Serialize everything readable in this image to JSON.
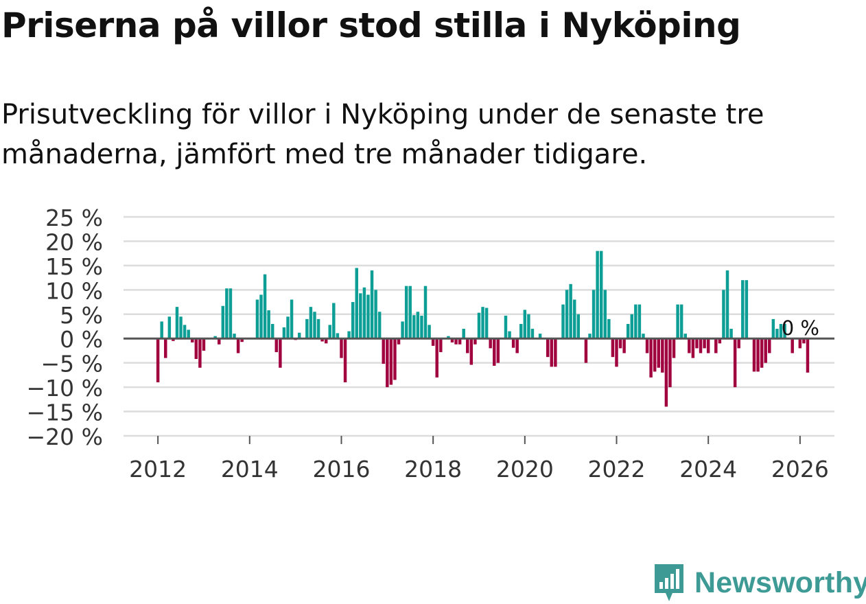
{
  "title": "Priserna på villor stod stilla i Nyköping",
  "subtitle": "Prisutveckling för villor i Nyköping under de senaste tre månaderna, jämfört med tre månader tidigare.",
  "brand": {
    "name": "Newsworthy",
    "color": "#3e9a95",
    "icon": "newsworthy-logo-icon"
  },
  "colors": {
    "positive": "#0d9e96",
    "negative": "#a0003e",
    "grid": "#dcdcdc",
    "zero": "#555555",
    "text": "#333333"
  },
  "chart_data": {
    "type": "bar",
    "title": "Priserna på villor stod stilla i Nyköping",
    "xlabel": "",
    "ylabel": "",
    "x_start": 2012.0,
    "x_step": 0.08333,
    "xlim": [
      2011.25,
      2026.75
    ],
    "ylim": [
      -20,
      25
    ],
    "yticks": [
      25,
      20,
      15,
      10,
      5,
      0,
      -5,
      -10,
      -15,
      -20
    ],
    "ytick_labels": [
      "25 %",
      "20 %",
      "15 %",
      "10 %",
      "5 %",
      "0 %",
      "−5 %",
      "−10 %",
      "−15 %",
      "−20 %"
    ],
    "xticks": [
      2012,
      2014,
      2016,
      2018,
      2020,
      2022,
      2024,
      2026
    ],
    "xtick_labels": [
      "2012",
      "2014",
      "2016",
      "2018",
      "2020",
      "2022",
      "2024",
      "2026"
    ],
    "annotation": "0 %",
    "values": [
      -9,
      3.5,
      -4,
      4.5,
      -0.5,
      6.5,
      4.5,
      2.8,
      1.8,
      -0.8,
      -4.2,
      -6,
      -2.5,
      0,
      0,
      0.5,
      -1.2,
      6.7,
      10.3,
      10.3,
      1,
      -3,
      -0.7,
      0,
      0,
      0,
      8,
      9,
      13.2,
      5.8,
      3,
      -2.8,
      -6,
      2.3,
      4.5,
      8,
      -0.3,
      1.2,
      0,
      4,
      6.5,
      5.5,
      4,
      -0.6,
      -1,
      2.8,
      7.3,
      1.1,
      -4,
      -9,
      1.5,
      7.5,
      14.5,
      9.3,
      10.5,
      9,
      14,
      10,
      5.5,
      -5.2,
      -10,
      -9.5,
      -8.5,
      -1.2,
      3.5,
      10.8,
      10.8,
      4.8,
      5.5,
      4.7,
      10.8,
      2.8,
      -1.5,
      -8,
      -2.8,
      0,
      0.5,
      -0.8,
      -1.2,
      -1.2,
      2,
      -3,
      -5.4,
      -1.2,
      5.3,
      6.5,
      6.3,
      -2,
      -5.6,
      -5,
      0,
      4.7,
      1.5,
      -1.9,
      -3,
      3,
      5.9,
      5,
      2,
      0,
      1,
      0,
      -3.8,
      -5.8,
      -5.8,
      0,
      7,
      10,
      11.2,
      8,
      5,
      0,
      -5,
      1,
      10,
      18,
      18,
      10,
      4,
      -3.8,
      -5.8,
      -2,
      -3,
      3,
      5,
      7,
      7,
      1,
      -3,
      -8,
      -6.8,
      -6,
      -7,
      -14,
      -10,
      -4,
      7,
      7,
      1,
      -3,
      -4,
      -2,
      -3,
      -2,
      -3,
      0,
      -3,
      -1,
      10,
      14,
      2,
      -10,
      -2,
      12,
      12,
      0,
      -6.8,
      -6.8,
      -6,
      -5,
      -3,
      4,
      2,
      3,
      3,
      0,
      -3,
      0,
      -2,
      -1,
      -7
    ]
  }
}
